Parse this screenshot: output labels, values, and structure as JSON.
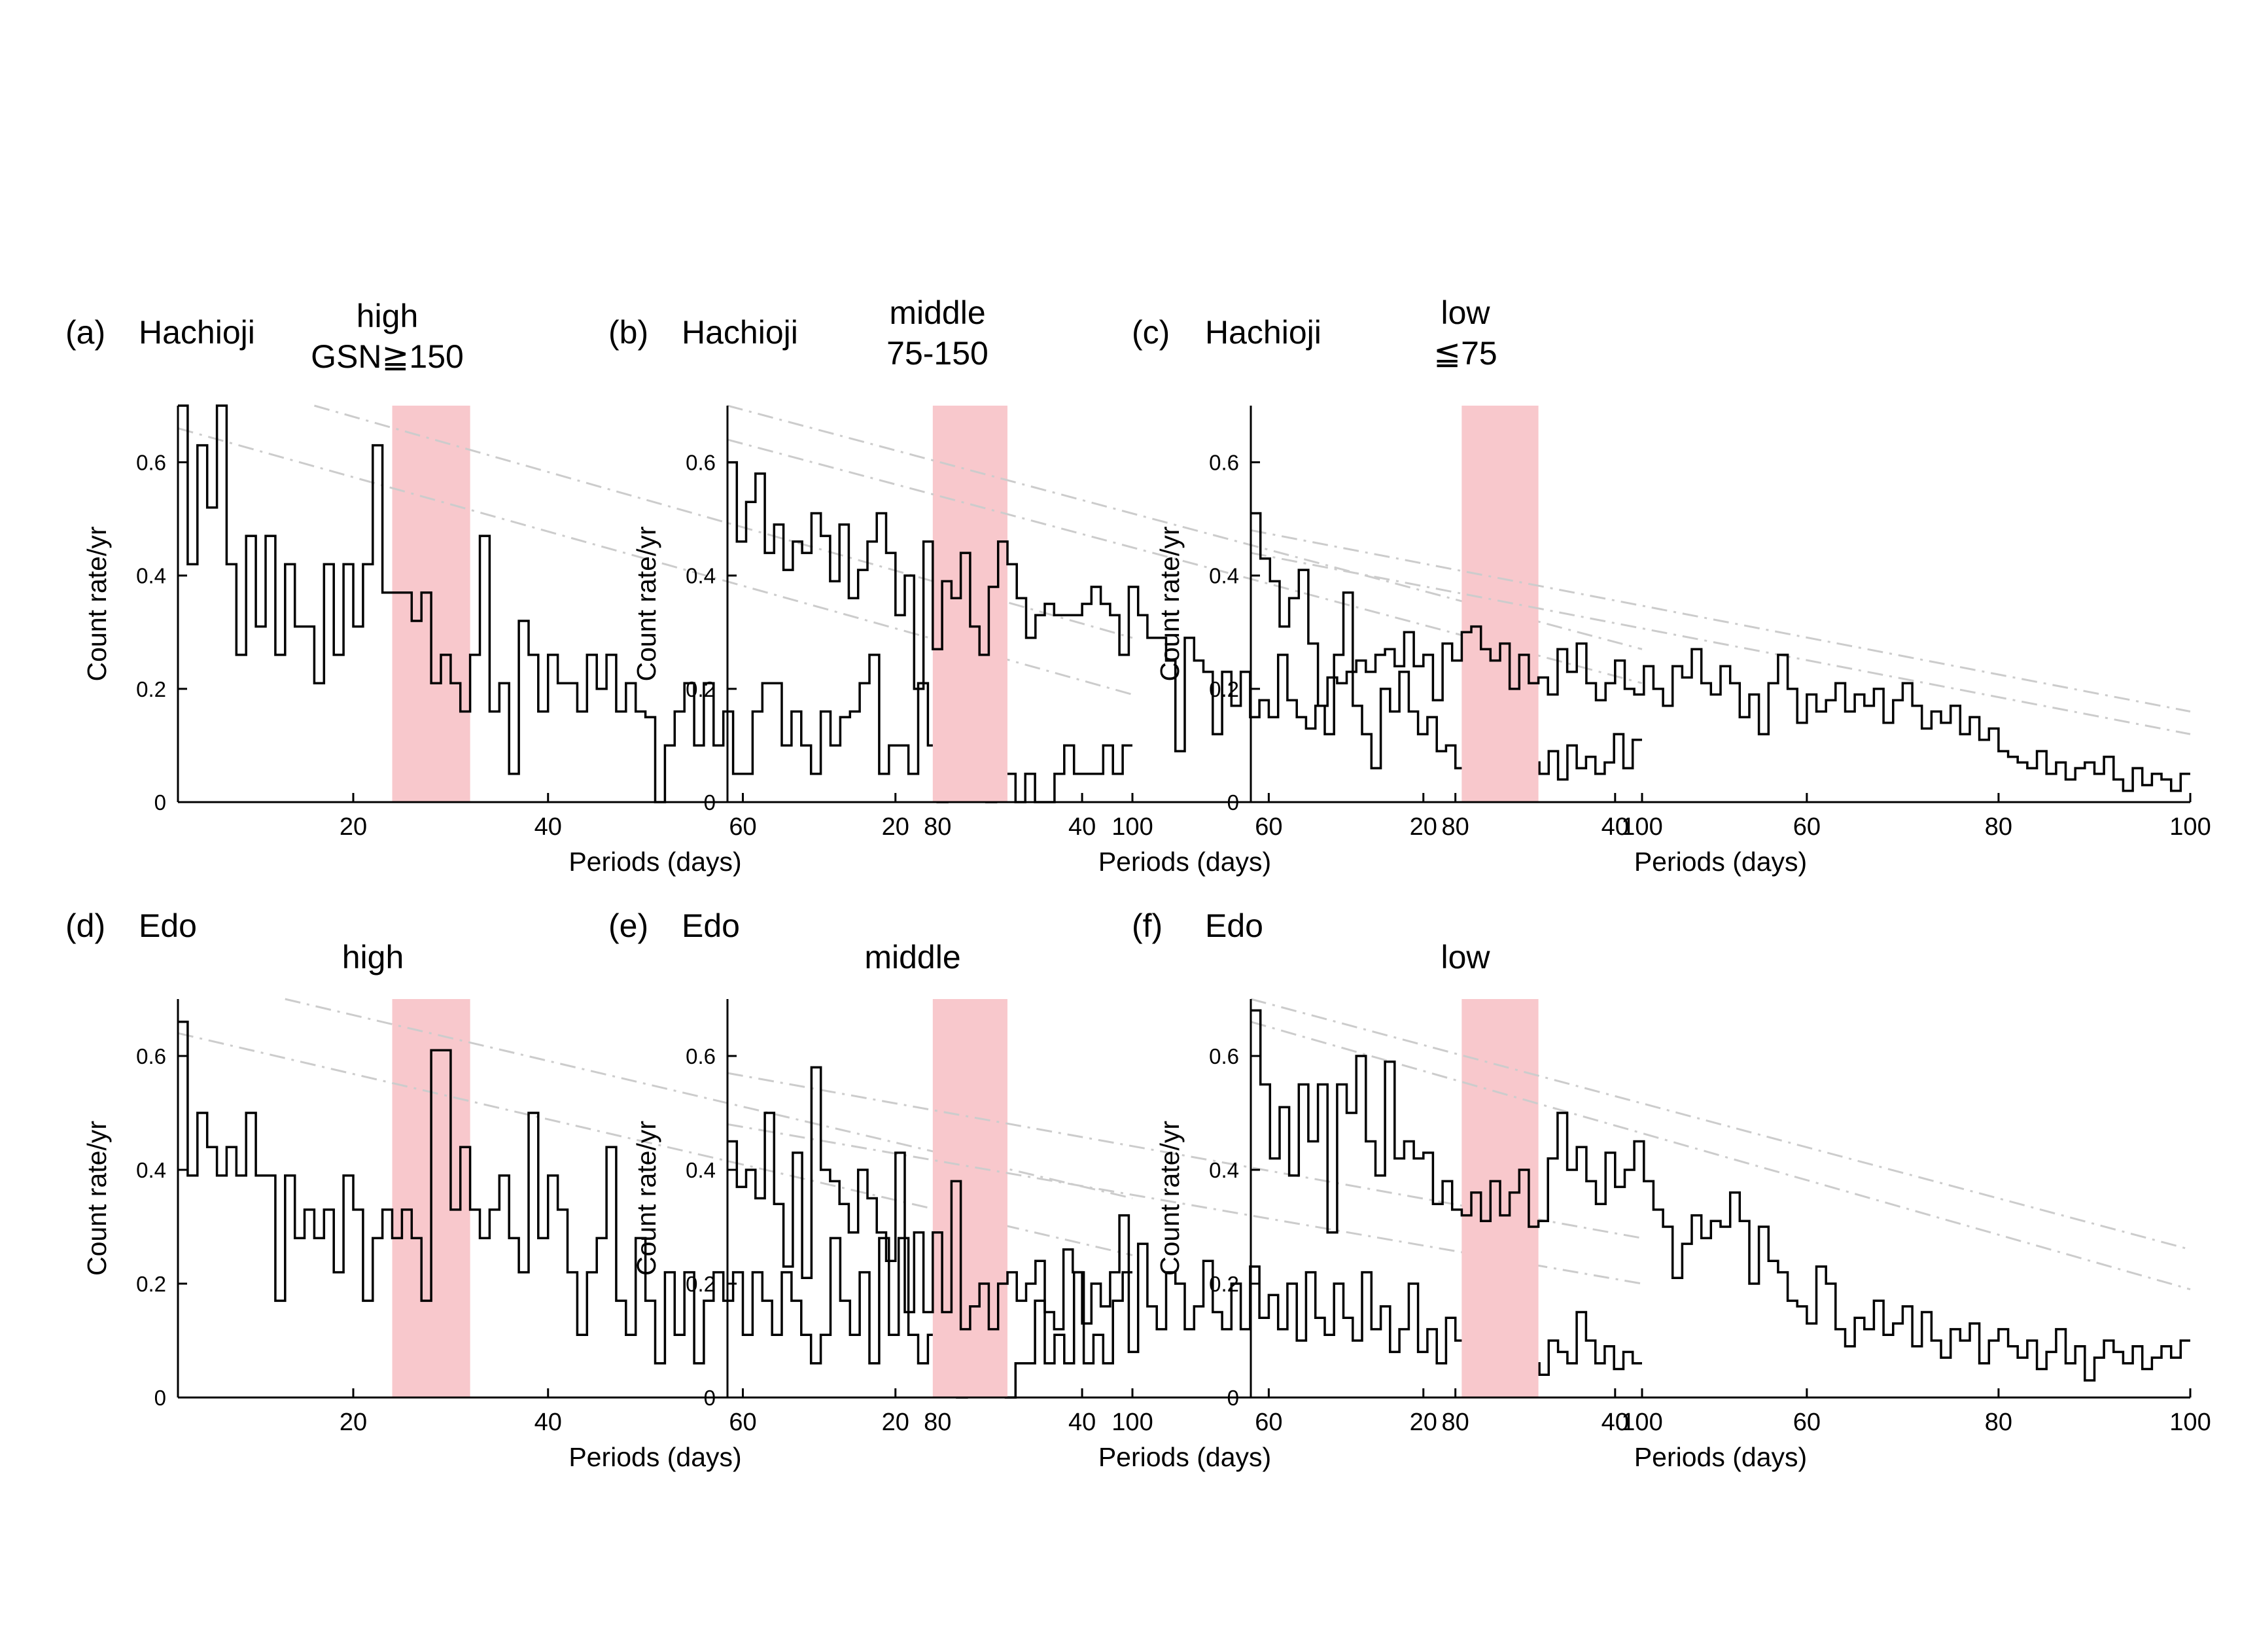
{
  "chart_data": [
    {
      "type": "line",
      "panel": "(a)",
      "location": "Hachioji",
      "title_lines": [
        "high",
        "GSN≧150"
      ],
      "xlabel": "Periods (days)",
      "ylabel": "Count rate/yr",
      "xlim": [
        2,
        100
      ],
      "ylim": [
        0,
        0.7
      ],
      "xticks": [
        20,
        40,
        60,
        80,
        100
      ],
      "yticks": [
        0,
        0.2,
        0.4,
        0.6
      ],
      "highlight_band": [
        24,
        32
      ],
      "band_color": "#f8c8cc",
      "guide_lines": [
        [
          [
            16,
            0.7
          ],
          [
            100,
            0.29
          ]
        ],
        [
          [
            2,
            0.66
          ],
          [
            100,
            0.19
          ]
        ]
      ],
      "steps": [
        0.7,
        0.42,
        0.63,
        0.52,
        0.7,
        0.42,
        0.26,
        0.47,
        0.31,
        0.47,
        0.26,
        0.42,
        0.31,
        0.31,
        0.21,
        0.42,
        0.26,
        0.42,
        0.31,
        0.42,
        0.63,
        0.37,
        0.37,
        0.37,
        0.32,
        0.37,
        0.21,
        0.26,
        0.21,
        0.16,
        0.26,
        0.47,
        0.16,
        0.21,
        0.05,
        0.32,
        0.26,
        0.16,
        0.26,
        0.21,
        0.21,
        0.16,
        0.26,
        0.2,
        0.26,
        0.16,
        0.21,
        0.16,
        0.15,
        0.0,
        0.1,
        0.16,
        0.21,
        0.1,
        0.21,
        0.1,
        0.16,
        0.05,
        0.05,
        0.16,
        0.21,
        0.21,
        0.1,
        0.16,
        0.1,
        0.05,
        0.16,
        0.1,
        0.15,
        0.16,
        0.21,
        0.26,
        0.05,
        0.1,
        0.1,
        0.05,
        0.21,
        0.1,
        0.0,
        0.05,
        0.15,
        0.16,
        0.05,
        0.0,
        0.16,
        0.05,
        0.0,
        0.05,
        0.0,
        0.0,
        0.05,
        0.1,
        0.05,
        0.05,
        0.05,
        0.1,
        0.05,
        0.1
      ]
    },
    {
      "type": "line",
      "panel": "(b)",
      "location": "Hachioji",
      "title_lines": [
        "middle",
        "75-150"
      ],
      "xlabel": "Periods (days)",
      "ylabel": "Count rate/yr",
      "xlim": [
        2,
        100
      ],
      "ylim": [
        0,
        0.7
      ],
      "xticks": [
        20,
        40,
        60,
        80,
        100
      ],
      "yticks": [
        0,
        0.2,
        0.4,
        0.6
      ],
      "highlight_band": [
        24,
        32
      ],
      "band_color": "#f8c8cc",
      "guide_lines": [
        [
          [
            2,
            0.7
          ],
          [
            100,
            0.27
          ]
        ],
        [
          [
            2,
            0.64
          ],
          [
            100,
            0.21
          ]
        ]
      ],
      "steps": [
        0.6,
        0.46,
        0.53,
        0.58,
        0.44,
        0.49,
        0.41,
        0.46,
        0.44,
        0.51,
        0.47,
        0.39,
        0.49,
        0.36,
        0.41,
        0.46,
        0.51,
        0.44,
        0.33,
        0.4,
        0.2,
        0.46,
        0.27,
        0.39,
        0.36,
        0.44,
        0.31,
        0.26,
        0.38,
        0.46,
        0.42,
        0.36,
        0.29,
        0.33,
        0.35,
        0.33,
        0.33,
        0.33,
        0.35,
        0.38,
        0.35,
        0.33,
        0.26,
        0.38,
        0.33,
        0.29,
        0.29,
        0.25,
        0.09,
        0.29,
        0.25,
        0.23,
        0.12,
        0.23,
        0.17,
        0.23,
        0.15,
        0.18,
        0.15,
        0.26,
        0.18,
        0.15,
        0.13,
        0.17,
        0.12,
        0.26,
        0.37,
        0.17,
        0.12,
        0.06,
        0.2,
        0.16,
        0.23,
        0.16,
        0.12,
        0.15,
        0.09,
        0.1,
        0.06,
        0.11,
        0.08,
        0.15,
        0.12,
        0.12,
        0.08,
        0.1,
        0.07,
        0.05,
        0.09,
        0.04,
        0.1,
        0.06,
        0.08,
        0.05,
        0.07,
        0.12,
        0.06,
        0.11
      ]
    },
    {
      "type": "line",
      "panel": "(c)",
      "location": "Hachioji",
      "title_lines": [
        "low",
        "≦75"
      ],
      "xlabel": "Periods (days)",
      "ylabel": "Count rate/yr",
      "xlim": [
        2,
        100
      ],
      "ylim": [
        0,
        0.7
      ],
      "xticks": [
        20,
        40,
        60,
        80,
        100
      ],
      "yticks": [
        0,
        0.2,
        0.4,
        0.6
      ],
      "highlight_band": [
        24,
        32
      ],
      "band_color": "#f8c8cc",
      "guide_lines": [
        [
          [
            2,
            0.48
          ],
          [
            100,
            0.16
          ]
        ],
        [
          [
            2,
            0.44
          ],
          [
            100,
            0.12
          ]
        ]
      ],
      "steps": [
        0.51,
        0.43,
        0.39,
        0.31,
        0.36,
        0.41,
        0.28,
        0.17,
        0.22,
        0.21,
        0.23,
        0.25,
        0.23,
        0.26,
        0.27,
        0.24,
        0.3,
        0.24,
        0.26,
        0.18,
        0.28,
        0.25,
        0.3,
        0.31,
        0.27,
        0.25,
        0.28,
        0.2,
        0.26,
        0.21,
        0.22,
        0.19,
        0.27,
        0.23,
        0.28,
        0.21,
        0.18,
        0.21,
        0.25,
        0.2,
        0.19,
        0.24,
        0.2,
        0.17,
        0.24,
        0.22,
        0.27,
        0.21,
        0.19,
        0.24,
        0.21,
        0.15,
        0.19,
        0.12,
        0.21,
        0.26,
        0.2,
        0.14,
        0.19,
        0.16,
        0.18,
        0.21,
        0.16,
        0.19,
        0.17,
        0.2,
        0.14,
        0.18,
        0.21,
        0.17,
        0.13,
        0.16,
        0.14,
        0.17,
        0.12,
        0.15,
        0.11,
        0.13,
        0.09,
        0.08,
        0.07,
        0.06,
        0.09,
        0.05,
        0.07,
        0.04,
        0.06,
        0.07,
        0.05,
        0.08,
        0.04,
        0.02,
        0.06,
        0.03,
        0.05,
        0.04,
        0.02,
        0.05
      ]
    },
    {
      "type": "line",
      "panel": "(d)",
      "location": "Edo",
      "title_lines": [
        "high"
      ],
      "xlabel": "Periods (days)",
      "ylabel": "Count rate/yr",
      "xlim": [
        2,
        100
      ],
      "ylim": [
        0,
        0.7
      ],
      "xticks": [
        20,
        40,
        60,
        80,
        100
      ],
      "yticks": [
        0,
        0.2,
        0.4,
        0.6
      ],
      "highlight_band": [
        24,
        32
      ],
      "band_color": "#f8c8cc",
      "guide_lines": [
        [
          [
            13,
            0.7
          ],
          [
            100,
            0.35
          ]
        ],
        [
          [
            2,
            0.64
          ],
          [
            100,
            0.25
          ]
        ]
      ],
      "steps": [
        0.66,
        0.39,
        0.5,
        0.44,
        0.39,
        0.44,
        0.39,
        0.5,
        0.39,
        0.39,
        0.17,
        0.39,
        0.28,
        0.33,
        0.28,
        0.33,
        0.22,
        0.39,
        0.33,
        0.17,
        0.28,
        0.33,
        0.28,
        0.33,
        0.28,
        0.17,
        0.61,
        0.61,
        0.33,
        0.44,
        0.33,
        0.28,
        0.33,
        0.39,
        0.28,
        0.22,
        0.5,
        0.28,
        0.39,
        0.33,
        0.22,
        0.11,
        0.22,
        0.28,
        0.44,
        0.17,
        0.11,
        0.28,
        0.17,
        0.06,
        0.22,
        0.11,
        0.22,
        0.06,
        0.17,
        0.22,
        0.17,
        0.22,
        0.11,
        0.22,
        0.17,
        0.11,
        0.22,
        0.17,
        0.11,
        0.06,
        0.11,
        0.28,
        0.17,
        0.11,
        0.22,
        0.06,
        0.28,
        0.11,
        0.28,
        0.11,
        0.06,
        0.11,
        0.22,
        0.06,
        0.0,
        0.11,
        0.06,
        0.06,
        0.06,
        0.0,
        0.06,
        0.06,
        0.17,
        0.06,
        0.11,
        0.06,
        0.22,
        0.06,
        0.11,
        0.06,
        0.17,
        0.22
      ]
    },
    {
      "type": "line",
      "panel": "(e)",
      "location": "Edo",
      "title_lines": [
        "middle"
      ],
      "xlabel": "Periods (days)",
      "ylabel": "Count rate/yr",
      "xlim": [
        2,
        100
      ],
      "ylim": [
        0,
        0.7
      ],
      "xticks": [
        20,
        40,
        60,
        80,
        100
      ],
      "yticks": [
        0,
        0.2,
        0.4,
        0.6
      ],
      "highlight_band": [
        24,
        32
      ],
      "band_color": "#f8c8cc",
      "guide_lines": [
        [
          [
            2,
            0.57
          ],
          [
            100,
            0.28
          ]
        ],
        [
          [
            2,
            0.48
          ],
          [
            100,
            0.2
          ]
        ]
      ],
      "steps": [
        0.45,
        0.37,
        0.4,
        0.35,
        0.5,
        0.34,
        0.23,
        0.43,
        0.21,
        0.58,
        0.4,
        0.38,
        0.34,
        0.29,
        0.4,
        0.35,
        0.29,
        0.24,
        0.43,
        0.15,
        0.29,
        0.15,
        0.29,
        0.15,
        0.38,
        0.12,
        0.16,
        0.2,
        0.12,
        0.2,
        0.22,
        0.17,
        0.2,
        0.24,
        0.15,
        0.12,
        0.26,
        0.22,
        0.13,
        0.2,
        0.16,
        0.22,
        0.32,
        0.08,
        0.27,
        0.16,
        0.12,
        0.22,
        0.2,
        0.12,
        0.16,
        0.24,
        0.15,
        0.12,
        0.2,
        0.12,
        0.23,
        0.14,
        0.18,
        0.12,
        0.2,
        0.1,
        0.22,
        0.14,
        0.11,
        0.2,
        0.14,
        0.1,
        0.22,
        0.12,
        0.16,
        0.08,
        0.12,
        0.2,
        0.08,
        0.12,
        0.06,
        0.14,
        0.1,
        0.08,
        0.05,
        0.07,
        0.1,
        0.08,
        0.05,
        0.12,
        0.06,
        0.04,
        0.1,
        0.08,
        0.06,
        0.15,
        0.1,
        0.06,
        0.09,
        0.05,
        0.08,
        0.06
      ]
    },
    {
      "type": "line",
      "panel": "(f)",
      "location": "Edo",
      "title_lines": [
        "low"
      ],
      "xlabel": "Periods (days)",
      "ylabel": "Count rate/yr",
      "xlim": [
        2,
        100
      ],
      "ylim": [
        0,
        0.7
      ],
      "xticks": [
        20,
        40,
        60,
        80,
        100
      ],
      "yticks": [
        0,
        0.2,
        0.4,
        0.6
      ],
      "highlight_band": [
        24,
        32
      ],
      "band_color": "#f8c8cc",
      "guide_lines": [
        [
          [
            2,
            0.7
          ],
          [
            100,
            0.26
          ]
        ],
        [
          [
            2,
            0.66
          ],
          [
            100,
            0.19
          ]
        ]
      ],
      "steps": [
        0.68,
        0.55,
        0.42,
        0.51,
        0.39,
        0.55,
        0.45,
        0.55,
        0.29,
        0.55,
        0.5,
        0.6,
        0.45,
        0.39,
        0.59,
        0.42,
        0.45,
        0.42,
        0.43,
        0.34,
        0.38,
        0.33,
        0.32,
        0.36,
        0.31,
        0.38,
        0.32,
        0.36,
        0.4,
        0.3,
        0.31,
        0.42,
        0.5,
        0.4,
        0.44,
        0.38,
        0.34,
        0.43,
        0.37,
        0.4,
        0.45,
        0.38,
        0.33,
        0.3,
        0.21,
        0.27,
        0.32,
        0.28,
        0.31,
        0.3,
        0.36,
        0.31,
        0.2,
        0.3,
        0.24,
        0.22,
        0.17,
        0.16,
        0.13,
        0.23,
        0.2,
        0.12,
        0.09,
        0.14,
        0.12,
        0.17,
        0.11,
        0.13,
        0.16,
        0.09,
        0.15,
        0.1,
        0.07,
        0.12,
        0.1,
        0.13,
        0.06,
        0.1,
        0.12,
        0.09,
        0.07,
        0.1,
        0.05,
        0.08,
        0.12,
        0.06,
        0.09,
        0.03,
        0.07,
        0.1,
        0.08,
        0.06,
        0.09,
        0.05,
        0.07,
        0.09,
        0.07,
        0.1
      ]
    }
  ]
}
